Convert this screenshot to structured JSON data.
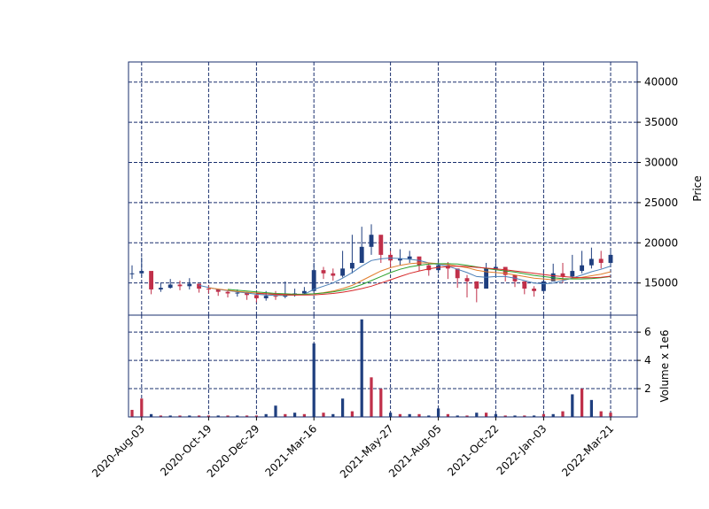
{
  "chart_data": [
    {
      "type": "candlestick",
      "panel": "price",
      "ylabel": "Price",
      "ylim": [
        11000,
        42500
      ],
      "yticks": [
        15000,
        20000,
        25000,
        30000,
        35000,
        40000
      ],
      "ytick_labels": [
        "15000",
        "20000",
        "25000",
        "30000",
        "35000",
        "40000"
      ],
      "grid": true,
      "grid_style": "dashed",
      "up_color": "#1f3f7f",
      "down_color": "#c0304a",
      "x_dates": [
        "2020-07-27",
        "2020-08-03",
        "2020-08-10",
        "2020-08-17",
        "2020-08-24",
        "2020-09-07",
        "2020-09-21",
        "2020-10-05",
        "2020-10-19",
        "2020-11-02",
        "2020-11-16",
        "2020-11-30",
        "2020-12-14",
        "2020-12-29",
        "2021-01-11",
        "2021-01-25",
        "2021-02-08",
        "2021-02-22",
        "2021-03-08",
        "2021-03-16",
        "2021-03-29",
        "2021-04-12",
        "2021-04-19",
        "2021-04-26",
        "2021-05-03",
        "2021-05-10",
        "2021-05-17",
        "2021-05-27",
        "2021-06-07",
        "2021-06-21",
        "2021-07-05",
        "2021-07-19",
        "2021-08-05",
        "2021-08-16",
        "2021-08-30",
        "2021-09-13",
        "2021-09-27",
        "2021-10-11",
        "2021-10-22",
        "2021-11-08",
        "2021-11-22",
        "2021-12-06",
        "2021-12-20",
        "2022-01-03",
        "2022-01-17",
        "2022-01-31",
        "2022-02-14",
        "2022-02-28",
        "2022-03-07",
        "2022-03-14",
        "2022-03-21"
      ],
      "close": [
        16200,
        16500,
        14200,
        14400,
        14800,
        14600,
        14900,
        14300,
        14200,
        13900,
        13700,
        13800,
        13500,
        13100,
        13400,
        13300,
        13600,
        13700,
        14000,
        16600,
        16200,
        15900,
        16800,
        17500,
        19500,
        21000,
        18500,
        17800,
        18000,
        18300,
        17200,
        16600,
        17200,
        16800,
        15600,
        15200,
        14300,
        16800,
        17000,
        16000,
        15200,
        14300,
        14000,
        15200,
        16200,
        15800,
        16500,
        17200,
        18000,
        17500,
        18500
      ],
      "high": [
        17200,
        18200,
        14900,
        15000,
        15500,
        15300,
        15600,
        14900,
        14700,
        14300,
        14100,
        14200,
        13900,
        13600,
        14000,
        14000,
        15200,
        14300,
        14500,
        17500,
        17000,
        16800,
        19000,
        21000,
        22000,
        22300,
        19500,
        19000,
        19200,
        19000,
        18200,
        17500,
        17800,
        17600,
        16500,
        16000,
        15200,
        17500,
        17800,
        16800,
        16000,
        15000,
        14600,
        16500,
        17400,
        17500,
        18500,
        19000,
        19400,
        19000,
        19200
      ],
      "low": [
        15500,
        15800,
        13600,
        13900,
        14300,
        14100,
        14200,
        13800,
        13700,
        13400,
        13200,
        13300,
        12900,
        12600,
        12800,
        12900,
        13100,
        13300,
        13600,
        15800,
        15500,
        15300,
        15700,
        16200,
        17800,
        18500,
        17500,
        17000,
        17200,
        17500,
        16500,
        15900,
        16200,
        15500,
        14400,
        13200,
        12600,
        15400,
        15900,
        15200,
        14500,
        13600,
        13300,
        14400,
        15300,
        15000,
        15500,
        16200,
        16800,
        16800,
        17200
      ],
      "moving_averages": [
        {
          "color": "#4a7fb8",
          "values": [
            null,
            null,
            null,
            null,
            null,
            null,
            null,
            14700,
            14450,
            14200,
            14050,
            13900,
            13750,
            13600,
            13500,
            13450,
            13450,
            13500,
            13600,
            14200,
            14600,
            15000,
            15600,
            16300,
            17100,
            17800,
            18000,
            18100,
            18050,
            17950,
            17800,
            17500,
            17300,
            17100,
            16700,
            16300,
            15800,
            15700,
            15800,
            15800,
            15600,
            15300,
            15000,
            14900,
            15000,
            15300,
            15600,
            16000,
            16400,
            16700,
            17100
          ]
        },
        {
          "color": "#e07d2c",
          "values": [
            null,
            null,
            null,
            null,
            null,
            null,
            null,
            null,
            14400,
            14250,
            14100,
            13950,
            13850,
            13750,
            13650,
            13550,
            13500,
            13500,
            13550,
            13650,
            13800,
            14000,
            14300,
            14700,
            15300,
            15900,
            16500,
            16900,
            17200,
            17400,
            17500,
            17500,
            17400,
            17300,
            17100,
            16900,
            16600,
            16400,
            16300,
            16200,
            16000,
            15800,
            15600,
            15500,
            15400,
            15450,
            15550,
            15700,
            15900,
            16100,
            16400
          ]
        },
        {
          "color": "#2ca02c",
          "values": [
            null,
            null,
            null,
            null,
            null,
            null,
            null,
            null,
            null,
            null,
            14200,
            14100,
            14000,
            13900,
            13800,
            13700,
            13650,
            13600,
            13600,
            13650,
            13750,
            13900,
            14100,
            14400,
            14800,
            15300,
            15800,
            16300,
            16700,
            17000,
            17200,
            17350,
            17400,
            17400,
            17350,
            17200,
            17000,
            16800,
            16650,
            16500,
            16350,
            16150,
            15950,
            15800,
            15650,
            15550,
            15500,
            15500,
            15550,
            15650,
            15800
          ]
        },
        {
          "color": "#d62728",
          "values": [
            null,
            null,
            null,
            null,
            null,
            null,
            null,
            null,
            null,
            null,
            null,
            null,
            null,
            13700,
            13650,
            13600,
            13550,
            13500,
            13500,
            13520,
            13600,
            13700,
            13850,
            14050,
            14300,
            14600,
            15000,
            15400,
            15800,
            16200,
            16500,
            16750,
            16950,
            17050,
            17100,
            17050,
            16950,
            16850,
            16750,
            16650,
            16500,
            16350,
            16200,
            16050,
            15900,
            15800,
            15700,
            15650,
            15650,
            15700,
            15850
          ]
        }
      ]
    },
    {
      "type": "bar",
      "panel": "volume",
      "ylabel": "Volume x 1e6",
      "ylim": [
        0,
        7.2
      ],
      "yticks": [
        2,
        4,
        6
      ],
      "ytick_labels": [
        "2",
        "4",
        "6"
      ],
      "grid": true,
      "grid_style": "dashed",
      "values": [
        0.5,
        1.3,
        0.2,
        0.1,
        0.1,
        0.1,
        0.1,
        0.1,
        0.1,
        0.1,
        0.1,
        0.1,
        0.1,
        0.1,
        0.2,
        0.8,
        0.2,
        0.3,
        0.2,
        5.2,
        0.3,
        0.2,
        1.3,
        0.4,
        6.9,
        2.8,
        2.0,
        0.3,
        0.2,
        0.2,
        0.2,
        0.1,
        0.6,
        0.2,
        0.1,
        0.1,
        0.3,
        0.3,
        0.2,
        0.1,
        0.1,
        0.1,
        0.1,
        0.2,
        0.2,
        0.4,
        1.6,
        2.0,
        1.2,
        0.4,
        0.3
      ],
      "colors": [
        "down",
        "down",
        "up",
        "down",
        "up",
        "down",
        "up",
        "down",
        "down",
        "up",
        "down",
        "up",
        "down",
        "down",
        "up",
        "up",
        "down",
        "up",
        "down",
        "up",
        "down",
        "up",
        "up",
        "down",
        "up",
        "down",
        "down",
        "up",
        "down",
        "up",
        "down",
        "up",
        "up",
        "down",
        "up",
        "down",
        "up",
        "down",
        "up",
        "down",
        "up",
        "down",
        "up",
        "down",
        "up",
        "down",
        "up",
        "down",
        "up",
        "down",
        "down"
      ]
    }
  ],
  "x_axis": {
    "tick_labels": [
      "2020-Aug-03",
      "2020-Oct-19",
      "2020-Dec-29",
      "2021-Mar-16",
      "2021-May-27",
      "2021-Aug-05",
      "2021-Oct-22",
      "2022-Jan-03",
      "2022-Mar-21"
    ],
    "tick_indices": [
      1,
      8,
      13,
      19,
      27,
      32,
      38,
      43,
      50
    ]
  },
  "style": {
    "frame_color": "#1a2f6e",
    "grid_color": "#1a2f6e",
    "up_color": "#1f3f7f",
    "down_color": "#c0304a"
  }
}
